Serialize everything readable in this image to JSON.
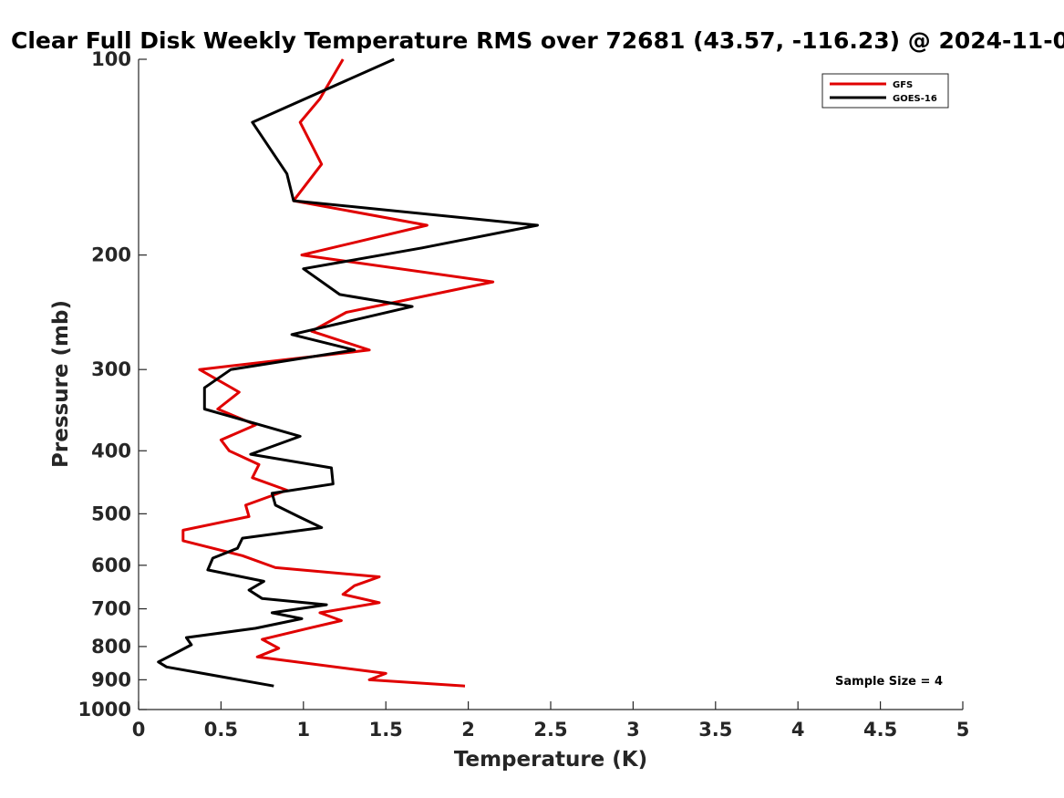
{
  "chart_data": {
    "type": "line",
    "title": "Clear Full Disk Weekly Temperature RMS over 72681 (43.57, -116.23) @ 2024-11-0",
    "xlabel": "Temperature (K)",
    "ylabel": "Pressure (mb)",
    "xlim": [
      0,
      5
    ],
    "ylim": [
      1000,
      100
    ],
    "yscale": "log",
    "x_ticks": [
      0,
      0.5,
      1,
      1.5,
      2,
      2.5,
      3,
      3.5,
      4,
      4.5,
      5
    ],
    "x_tick_labels": [
      "0",
      "0.5",
      "1",
      "1.5",
      "2",
      "2.5",
      "3",
      "3.5",
      "4",
      "4.5",
      "5"
    ],
    "y_ticks": [
      100,
      200,
      300,
      400,
      500,
      600,
      700,
      800,
      900,
      1000
    ],
    "y_tick_labels": [
      "100",
      "200",
      "300",
      "400",
      "500",
      "600",
      "700",
      "800",
      "900",
      "1000"
    ],
    "grid": false,
    "legend_position": "top-right",
    "annotation": "Sample Size = 4",
    "series": [
      {
        "name": "GFS",
        "color": "#e00000",
        "points": [
          [
            1.24,
            100
          ],
          [
            1.1,
            115
          ],
          [
            0.98,
            125
          ],
          [
            1.11,
            145
          ],
          [
            0.94,
            165
          ],
          [
            1.75,
            180
          ],
          [
            0.99,
            200
          ],
          [
            2.15,
            220
          ],
          [
            1.26,
            245
          ],
          [
            1.05,
            262
          ],
          [
            1.4,
            280
          ],
          [
            0.37,
            300
          ],
          [
            0.61,
            325
          ],
          [
            0.48,
            345
          ],
          [
            0.71,
            365
          ],
          [
            0.5,
            385
          ],
          [
            0.55,
            400
          ],
          [
            0.73,
            420
          ],
          [
            0.69,
            440
          ],
          [
            0.9,
            460
          ],
          [
            0.65,
            485
          ],
          [
            0.67,
            505
          ],
          [
            0.27,
            530
          ],
          [
            0.27,
            550
          ],
          [
            0.63,
            580
          ],
          [
            0.83,
            605
          ],
          [
            1.46,
            625
          ],
          [
            1.31,
            645
          ],
          [
            1.24,
            665
          ],
          [
            1.46,
            685
          ],
          [
            1.1,
            710
          ],
          [
            1.23,
            730
          ],
          [
            1.03,
            750
          ],
          [
            0.75,
            780
          ],
          [
            0.85,
            805
          ],
          [
            0.72,
            830
          ],
          [
            1.5,
            880
          ],
          [
            1.4,
            900
          ],
          [
            1.98,
            920
          ]
        ]
      },
      {
        "name": "GOES-16",
        "color": "#000000",
        "points": [
          [
            1.55,
            100
          ],
          [
            0.69,
            125
          ],
          [
            0.9,
            150
          ],
          [
            0.94,
            165
          ],
          [
            2.42,
            180
          ],
          [
            1.72,
            195
          ],
          [
            1.0,
            210
          ],
          [
            1.22,
            230
          ],
          [
            1.66,
            240
          ],
          [
            0.93,
            265
          ],
          [
            1.31,
            280
          ],
          [
            0.56,
            300
          ],
          [
            0.4,
            320
          ],
          [
            0.4,
            345
          ],
          [
            0.98,
            380
          ],
          [
            0.68,
            405
          ],
          [
            1.17,
            425
          ],
          [
            1.18,
            450
          ],
          [
            0.81,
            465
          ],
          [
            0.83,
            485
          ],
          [
            0.97,
            505
          ],
          [
            1.11,
            525
          ],
          [
            0.63,
            545
          ],
          [
            0.6,
            565
          ],
          [
            0.45,
            585
          ],
          [
            0.42,
            610
          ],
          [
            0.76,
            635
          ],
          [
            0.67,
            655
          ],
          [
            0.75,
            675
          ],
          [
            1.14,
            690
          ],
          [
            0.81,
            710
          ],
          [
            0.99,
            725
          ],
          [
            0.71,
            750
          ],
          [
            0.29,
            775
          ],
          [
            0.32,
            795
          ],
          [
            0.22,
            820
          ],
          [
            0.12,
            845
          ],
          [
            0.17,
            860
          ],
          [
            0.39,
            880
          ],
          [
            0.82,
            920
          ]
        ]
      }
    ]
  }
}
